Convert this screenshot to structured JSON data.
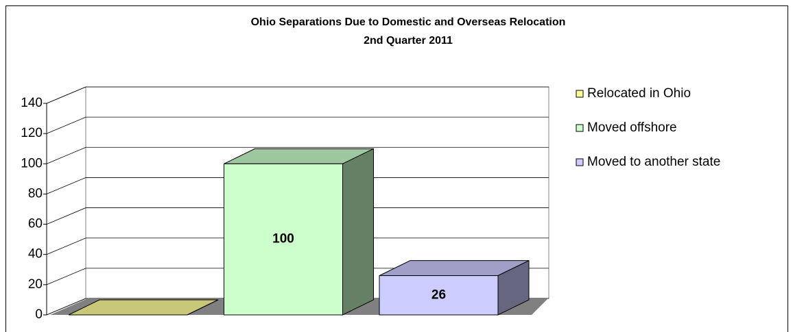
{
  "chart_data": {
    "type": "bar3d",
    "title": "Ohio Separations Due to Domestic and Overseas Relocation",
    "subtitle": "2nd Quarter 2011",
    "categories": [
      null
    ],
    "series": [
      {
        "name": "Relocated in Ohio",
        "color": "#ffff99",
        "values": [
          0
        ]
      },
      {
        "name": "Moved offshore",
        "color": "#ccffcc",
        "values": [
          100
        ],
        "value_labels": [
          "100"
        ]
      },
      {
        "name": "Moved to another state",
        "color": "#ccccff",
        "values": [
          26
        ],
        "value_labels": [
          "26"
        ]
      }
    ],
    "ylim": [
      0,
      140
    ],
    "yticks": [
      0,
      20,
      40,
      60,
      80,
      100,
      120,
      140
    ],
    "grid": true,
    "legend": "right"
  }
}
